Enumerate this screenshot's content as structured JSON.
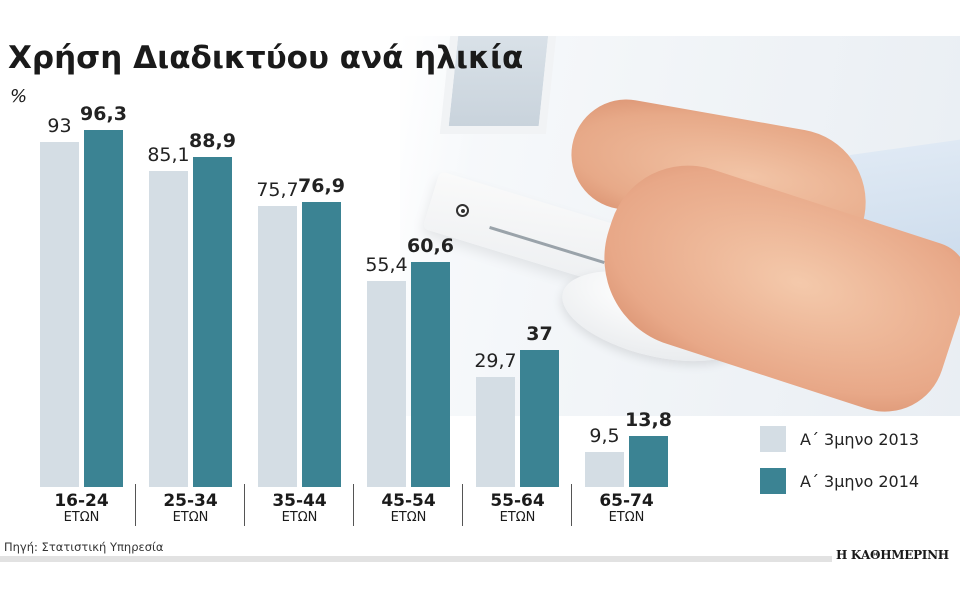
{
  "header": {
    "title": "Χρήση Διαδικτύου ανά ηλικία",
    "unit": "%"
  },
  "legend": [
    {
      "label": "Α΄ 3μηνο 2013",
      "color": "#d4dde4"
    },
    {
      "label": "Α΄ 3μηνο 2014",
      "color": "#3b8393"
    }
  ],
  "groups": [
    {
      "range": "16-24",
      "unit": "ΕΤΩΝ",
      "v2013": "93",
      "v2014": "96,3"
    },
    {
      "range": "25-34",
      "unit": "ΕΤΩΝ",
      "v2013": "85,1",
      "v2014": "88,9"
    },
    {
      "range": "35-44",
      "unit": "ΕΤΩΝ",
      "v2013": "75,7",
      "v2014": "76,9"
    },
    {
      "range": "45-54",
      "unit": "ΕΤΩΝ",
      "v2013": "55,4",
      "v2014": "60,6"
    },
    {
      "range": "55-64",
      "unit": "ΕΤΩΝ",
      "v2013": "29,7",
      "v2014": "37"
    },
    {
      "range": "65-74",
      "unit": "ΕΤΩΝ",
      "v2013": "9,5",
      "v2014": "13,8"
    }
  ],
  "footer": {
    "source": "Πηγή: Στατιστική Υπηρεσία",
    "brand": "Η ΚΑΘΗΜΕΡΙΝΗ"
  },
  "chart_data": {
    "type": "bar",
    "title": "Χρήση Διαδικτύου ανά ηλικία",
    "ylabel": "%",
    "xlabel": "",
    "categories": [
      "16-24 ΕΤΩΝ",
      "25-34 ΕΤΩΝ",
      "35-44 ΕΤΩΝ",
      "45-54 ΕΤΩΝ",
      "55-64 ΕΤΩΝ",
      "65-74 ΕΤΩΝ"
    ],
    "series": [
      {
        "name": "Α΄ 3μηνο 2013",
        "color": "#d4dde4",
        "values": [
          93,
          85.1,
          75.7,
          55.4,
          29.7,
          9.5
        ]
      },
      {
        "name": "Α΄ 3μηνο 2014",
        "color": "#3b8393",
        "values": [
          96.3,
          88.9,
          76.9,
          60.6,
          37,
          13.8
        ]
      }
    ],
    "ylim": [
      0,
      100
    ],
    "grid": false,
    "legend_position": "bottom-right",
    "annotations": [
      "Πηγή: Στατιστική Υπηρεσία",
      "Η ΚΑΘΗΜΕΡΙΝΗ"
    ]
  }
}
